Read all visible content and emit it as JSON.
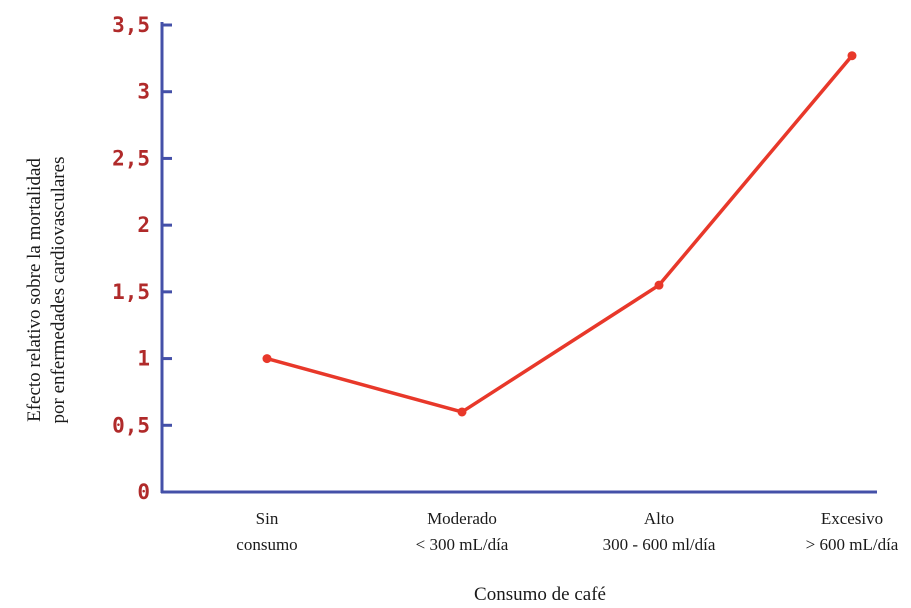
{
  "chart_data": {
    "type": "line",
    "title": "",
    "xlabel": "Consumo de café",
    "ylabel": [
      "Efecto relativo sobre la mortalidad",
      "por enfermedades cardiovasculares"
    ],
    "categories": [
      [
        "Sin",
        "consumo"
      ],
      [
        "Moderado",
        "< 300 mL/día"
      ],
      [
        "Alto",
        "300 - 600 ml/día"
      ],
      [
        "Excesivo",
        "> 600 mL/día"
      ]
    ],
    "series": [
      {
        "values": [
          1.0,
          0.6,
          1.55,
          3.27
        ]
      }
    ],
    "ylim": [
      0,
      3.5
    ],
    "yticks": [
      {
        "value": 0,
        "label": "0"
      },
      {
        "value": 0.5,
        "label": "0,5"
      },
      {
        "value": 1,
        "label": "1"
      },
      {
        "value": 1.5,
        "label": "1,5"
      },
      {
        "value": 2,
        "label": "2"
      },
      {
        "value": 2.5,
        "label": "2,5"
      },
      {
        "value": 3,
        "label": "3"
      },
      {
        "value": 3.5,
        "label": "3,5"
      }
    ],
    "grid": false,
    "legend": "none",
    "colors": {
      "line": "#e8382a",
      "axis": "#4450a8",
      "tick_label": "#b02a2a"
    }
  }
}
